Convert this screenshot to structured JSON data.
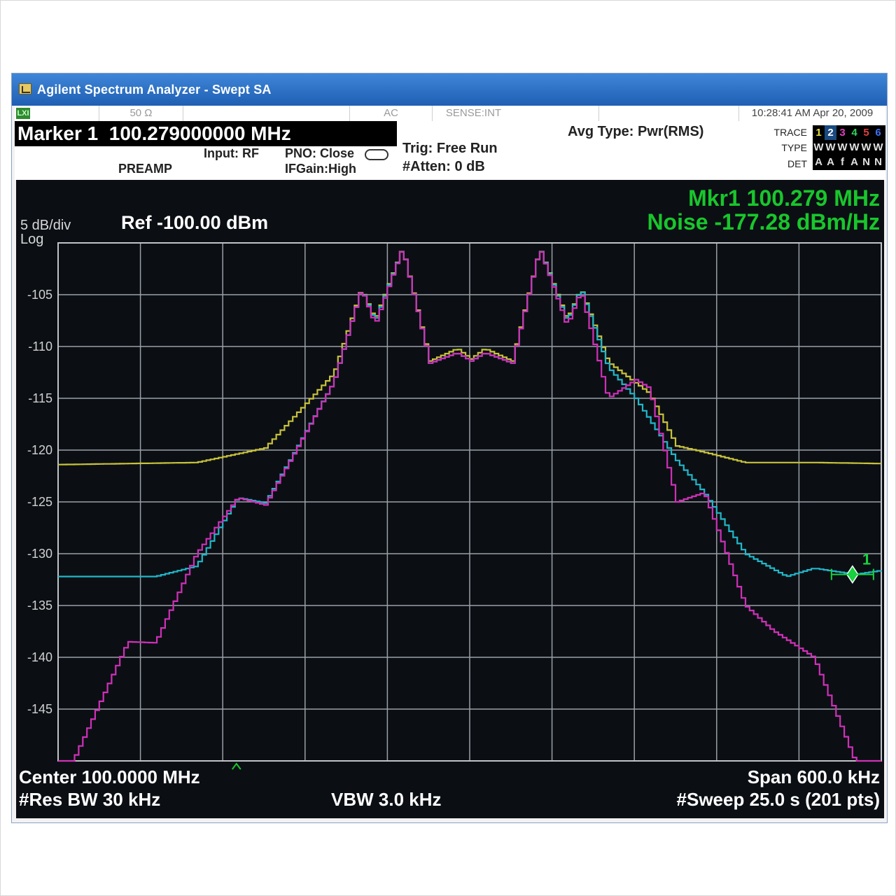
{
  "window": {
    "title": "Agilent Spectrum Analyzer - Swept SA"
  },
  "statusbar": {
    "lxi": "LXI",
    "impedance": "50 Ω",
    "coupling": "AC",
    "sense": "SENSE:INT",
    "timestamp": "10:28:41 AM Apr 20, 2009"
  },
  "info": {
    "marker_label": "Marker 1  100.279000000 MHz",
    "input": "Input: RF",
    "preamp": "PREAMP",
    "pno": "PNO: Close",
    "ifgain": "IFGain:High",
    "trig": "Trig: Free Run",
    "atten": "#Atten: 0 dB",
    "avg_type": "Avg Type: Pwr(RMS)",
    "trace_label": "TRACE",
    "type_label": "TYPE",
    "det_label": "DET",
    "trace_numbers": [
      "1",
      "2",
      "3",
      "4",
      "5",
      "6"
    ],
    "trace_types": [
      "W",
      "W",
      "W",
      "W",
      "W",
      "W"
    ],
    "trace_dets": [
      "A",
      "A",
      "f",
      "A",
      "N",
      "N"
    ],
    "trace_colors": [
      "#e8e040",
      "#22c8e0",
      "#e040c0",
      "#30d060",
      "#e04040",
      "#4070f0"
    ]
  },
  "display": {
    "scale": "5 dB/div",
    "scale_type": "Log",
    "ref": "Ref -100.00 dBm",
    "marker_readout_1": "Mkr1 100.279 MHz",
    "marker_readout_2": "Noise -177.28 dBm/Hz",
    "marker_number": "1",
    "y_tick_labels": [
      "-105",
      "-110",
      "-115",
      "-120",
      "-125",
      "-130",
      "-135",
      "-140",
      "-145"
    ],
    "center": "Center 100.0000 MHz",
    "res_bw": "#Res BW 30 kHz",
    "vbw": "VBW 3.0 kHz",
    "span": "Span 600.0 kHz",
    "sweep": "#Sweep  25.0 s (201 pts)"
  },
  "chart_data": {
    "type": "line",
    "ref_level": -100,
    "db_per_div": 5,
    "ylim": [
      -150,
      -100
    ],
    "xlim": [
      99.7,
      100.3
    ],
    "x_unit": "MHz",
    "y_unit": "dBm",
    "grid": true,
    "series": [
      {
        "color": "#c8c23a",
        "x": [
          99.7,
          99.8,
          99.85,
          99.9,
          99.92,
          99.93,
          99.95,
          99.97,
          99.99,
          100.0,
          100.01,
          100.03,
          100.05,
          100.07,
          100.08,
          100.1,
          100.13,
          100.15,
          100.17,
          100.2,
          100.25,
          100.3
        ],
        "y": [
          -121.4,
          -121.2,
          -119.8,
          -112.6,
          -104.4,
          -107.4,
          -100.5,
          -111.4,
          -110.2,
          -111.2,
          -110.2,
          -111.4,
          -100.5,
          -107.4,
          -104.4,
          -111.5,
          -114.5,
          -119.6,
          -120.2,
          -121.2,
          -121.2,
          -121.3
        ]
      },
      {
        "color": "#22b6c8",
        "x": [
          99.7,
          99.77,
          99.8,
          99.83,
          99.85,
          99.87,
          99.9,
          99.92,
          99.93,
          99.95,
          99.97,
          99.99,
          100.0,
          100.01,
          100.03,
          100.05,
          100.07,
          100.08,
          100.1,
          100.12,
          100.15,
          100.17,
          100.2,
          100.23,
          100.25,
          100.28,
          100.3
        ],
        "y": [
          -132.2,
          -132.2,
          -131.2,
          -124.6,
          -125.1,
          -120.5,
          -113.4,
          -104.4,
          -107.6,
          -100.5,
          -111.6,
          -110.6,
          -111.4,
          -110.6,
          -111.6,
          -100.5,
          -107.6,
          -104.4,
          -112.0,
          -115.0,
          -121.0,
          -124.1,
          -130.0,
          -132.2,
          -131.4,
          -132.0,
          -131.6
        ]
      },
      {
        "color": "#d030b8",
        "x": [
          99.7,
          99.71,
          99.75,
          99.77,
          99.8,
          99.83,
          99.85,
          99.87,
          99.9,
          99.92,
          99.93,
          99.95,
          99.97,
          99.99,
          100.0,
          100.01,
          100.03,
          100.05,
          100.07,
          100.08,
          100.1,
          100.12,
          100.13,
          100.15,
          100.17,
          100.2,
          100.22,
          100.25,
          100.28,
          100.3
        ],
        "y": [
          -150.0,
          -150.0,
          -138.5,
          -138.6,
          -130.0,
          -124.6,
          -125.3,
          -120.6,
          -113.4,
          -104.4,
          -107.9,
          -100.5,
          -111.6,
          -110.6,
          -111.4,
          -110.6,
          -111.6,
          -100.5,
          -108.0,
          -104.6,
          -115.0,
          -113.2,
          -114.0,
          -125.0,
          -124.1,
          -135.0,
          -137.4,
          -140.0,
          -150.0,
          -150.0
        ]
      }
    ]
  }
}
